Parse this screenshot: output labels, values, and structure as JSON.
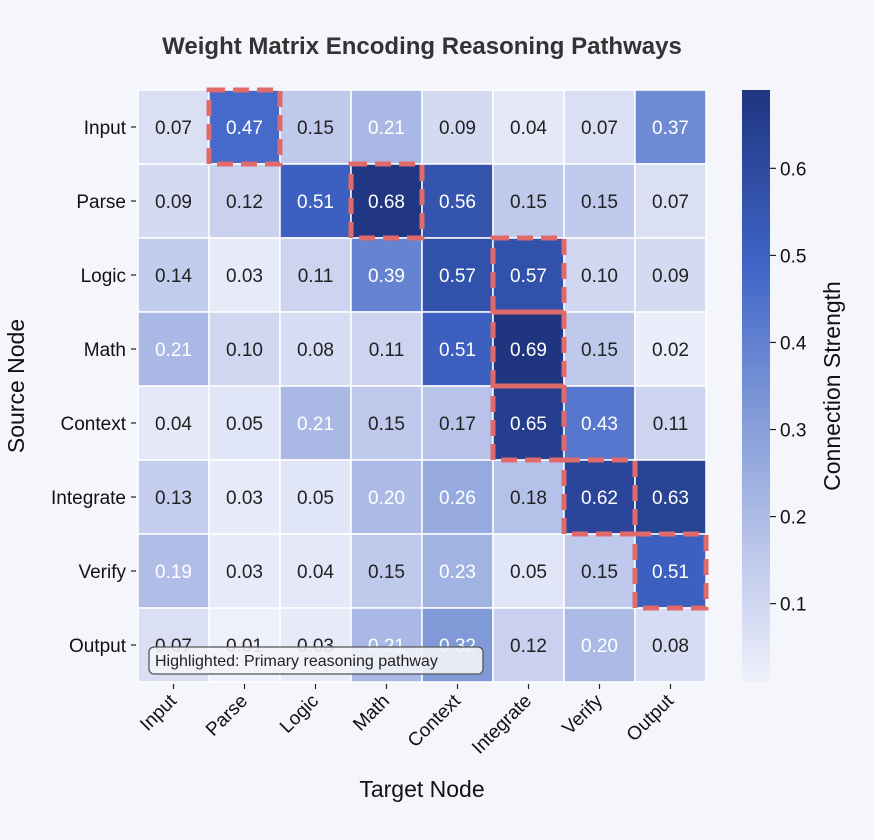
{
  "chart_data": {
    "type": "heatmap",
    "title": "Weight Matrix Encoding Reasoning Pathways",
    "xlabel": "Target Node",
    "ylabel": "Source Node",
    "x_categories": [
      "Input",
      "Parse",
      "Logic",
      "Math",
      "Context",
      "Integrate",
      "Verify",
      "Output"
    ],
    "y_categories": [
      "Input",
      "Parse",
      "Logic",
      "Math",
      "Context",
      "Integrate",
      "Verify",
      "Output"
    ],
    "values": [
      [
        0.07,
        0.47,
        0.15,
        0.21,
        0.09,
        0.04,
        0.07,
        0.37
      ],
      [
        0.09,
        0.12,
        0.51,
        0.68,
        0.56,
        0.15,
        0.15,
        0.07
      ],
      [
        0.14,
        0.03,
        0.11,
        0.39,
        0.57,
        0.57,
        0.1,
        0.09
      ],
      [
        0.21,
        0.1,
        0.08,
        0.11,
        0.51,
        0.69,
        0.15,
        0.02
      ],
      [
        0.04,
        0.05,
        0.21,
        0.15,
        0.17,
        0.65,
        0.43,
        0.11
      ],
      [
        0.13,
        0.03,
        0.05,
        0.2,
        0.26,
        0.18,
        0.62,
        0.63
      ],
      [
        0.19,
        0.03,
        0.04,
        0.15,
        0.23,
        0.05,
        0.15,
        0.51
      ],
      [
        0.07,
        0.01,
        0.03,
        0.21,
        0.32,
        0.12,
        0.2,
        0.08
      ]
    ],
    "value_labels": [
      [
        "0.07",
        "0.47",
        "0.15",
        "0.21",
        "0.09",
        "0.04",
        "0.07",
        "0.37"
      ],
      [
        "0.09",
        "0.12",
        "0.51",
        "0.68",
        "0.56",
        "0.15",
        "0.15",
        "0.07"
      ],
      [
        "0.14",
        "0.03",
        "0.11",
        "0.39",
        "0.57",
        "0.57",
        "0.10",
        "0.09"
      ],
      [
        "0.21",
        "0.10",
        "0.08",
        "0.11",
        "0.51",
        "0.69",
        "0.15",
        "0.02"
      ],
      [
        "0.04",
        "0.05",
        "0.21",
        "0.15",
        "0.17",
        "0.65",
        "0.43",
        "0.11"
      ],
      [
        "0.13",
        "0.03",
        "0.05",
        "0.20",
        "0.26",
        "0.18",
        "0.62",
        "0.63"
      ],
      [
        "0.19",
        "0.03",
        "0.04",
        "0.15",
        "0.23",
        "0.05",
        "0.15",
        "0.51"
      ],
      [
        "0.07",
        "0.01",
        "0.03",
        "0.21",
        "0.32",
        "0.12",
        "0.20",
        "0.08"
      ]
    ],
    "highlighted_cells": [
      [
        0,
        1
      ],
      [
        1,
        3
      ],
      [
        2,
        5
      ],
      [
        3,
        5
      ],
      [
        4,
        5
      ],
      [
        5,
        6
      ],
      [
        6,
        7
      ]
    ],
    "annotation": "Highlighted: Primary reasoning pathway",
    "colorbar": {
      "label": "Connection Strength",
      "range": [
        0.01,
        0.69
      ],
      "ticks": [
        0.1,
        0.2,
        0.3,
        0.4,
        0.5,
        0.6
      ],
      "tick_labels": [
        "0.1",
        "0.2",
        "0.3",
        "0.4",
        "0.5",
        "0.6"
      ]
    },
    "colors": {
      "low": "#eef0fb",
      "mid": "#3f65c8",
      "high": "#1f3580",
      "highlight": "#e06a6a",
      "text_dark": "#222222",
      "text_light": "#ffffff"
    }
  }
}
